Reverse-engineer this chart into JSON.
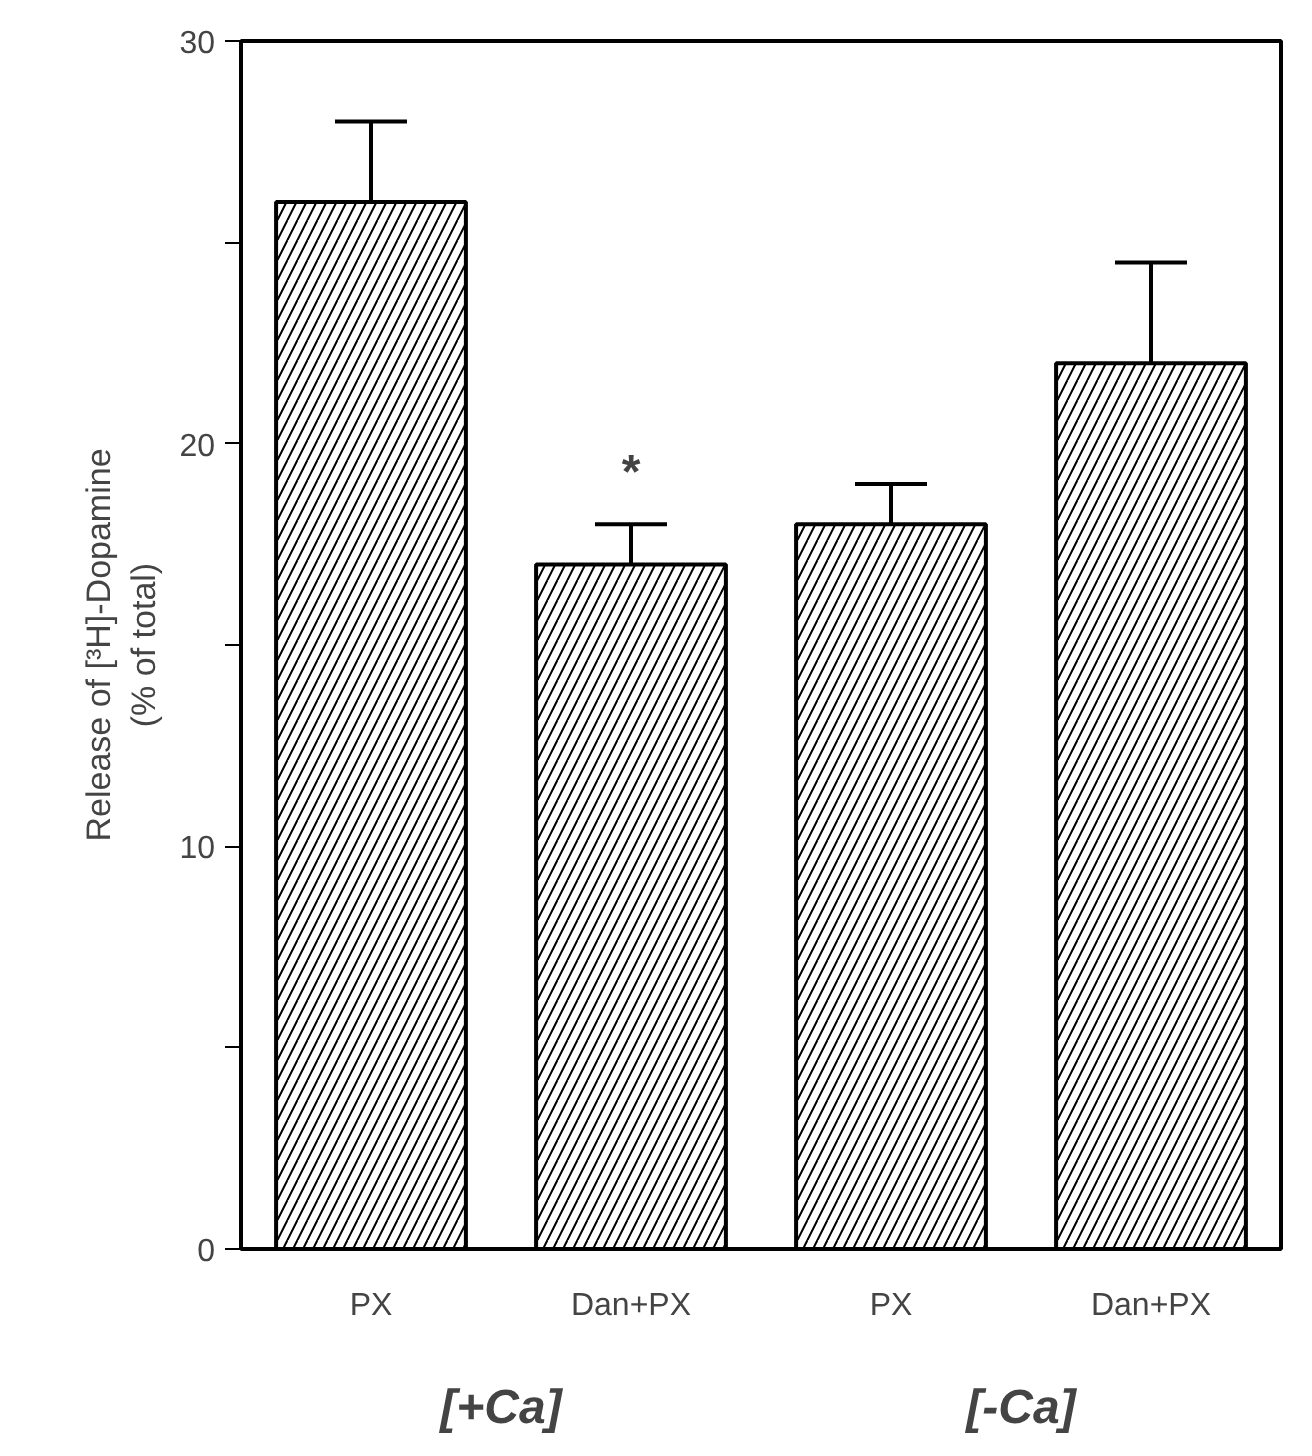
{
  "chart_data": {
    "type": "bar",
    "ylabel": "Release of [³H]-Dopamine\n(% of total)",
    "categories": [
      "PX",
      "Dan+PX",
      "PX",
      "Dan+PX"
    ],
    "values": [
      26,
      17,
      18,
      22
    ],
    "errors": [
      [
        26,
        28
      ],
      [
        17,
        18
      ],
      [
        18,
        19
      ],
      [
        22,
        24.5
      ]
    ],
    "color": "#ffffff",
    "ylim": [
      0,
      30
    ],
    "yticks": [
      0,
      {
        "value": 5,
        "label": null
      },
      10,
      {
        "value": 15,
        "label": null
      },
      20,
      {
        "value": 25,
        "label": null
      },
      30
    ],
    "annotations": [
      "*",
      "[+Ca]",
      "[-Ca]"
    ],
    "grid": false
  }
}
